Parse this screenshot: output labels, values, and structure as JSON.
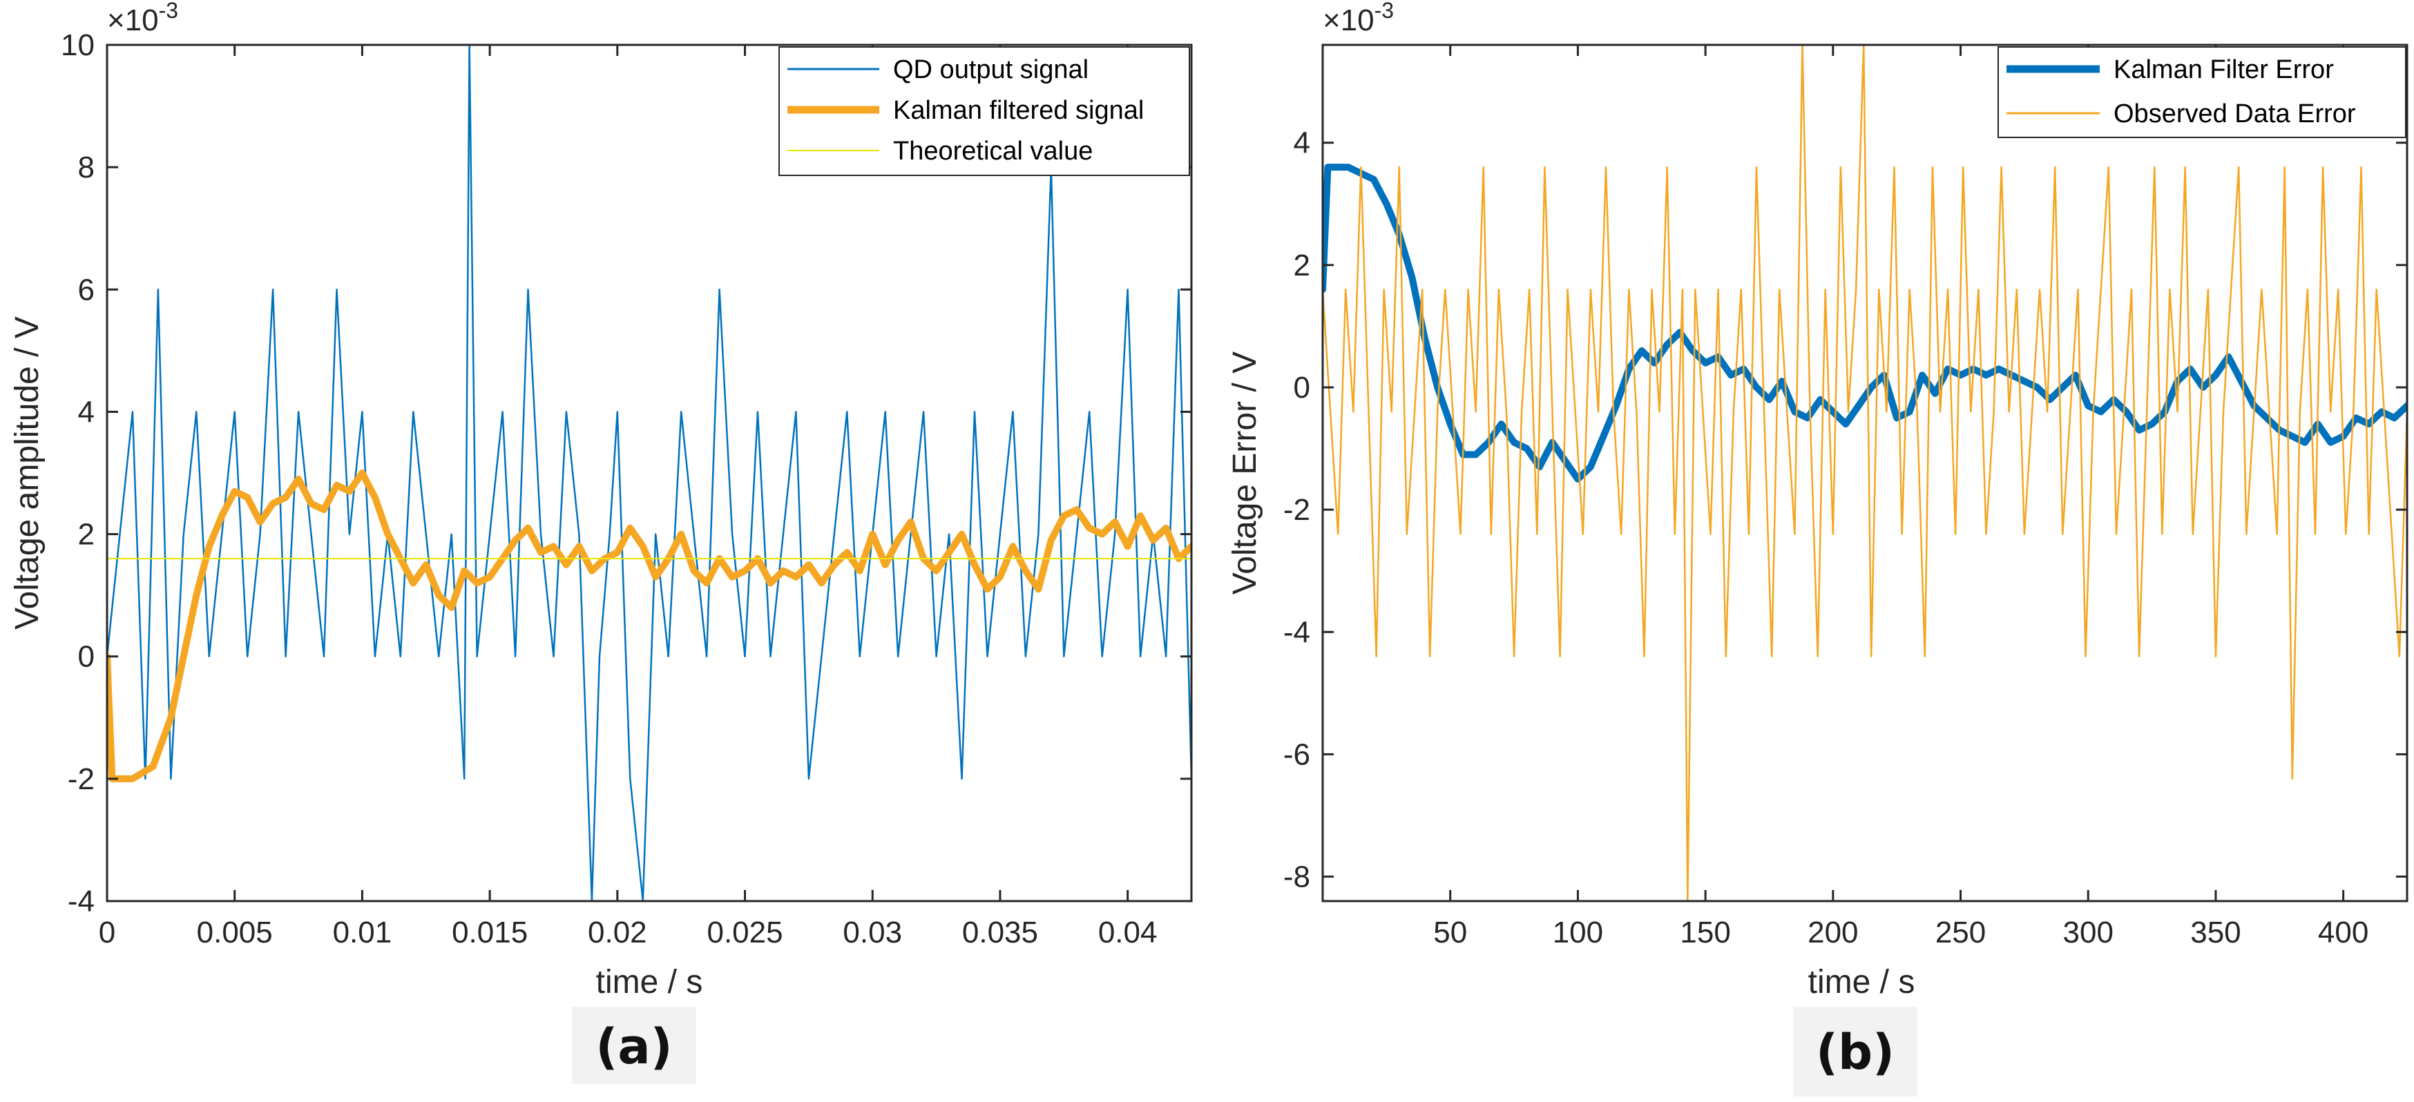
{
  "chart_data": [
    {
      "type": "line",
      "panel_label": "(a)",
      "xlabel": "time / s",
      "ylabel": "Voltage amplitude / V",
      "y_exponent_base": "×10",
      "y_exponent_power": "-3",
      "xlim": [
        0,
        0.0425
      ],
      "ylim": [
        -4,
        10
      ],
      "x_ticks": [
        0,
        0.005,
        0.01,
        0.015,
        0.02,
        0.025,
        0.03,
        0.035,
        0.04
      ],
      "x_tick_labels": [
        "0",
        "0.005",
        "0.01",
        "0.015",
        "0.02",
        "0.025",
        "0.03",
        "0.035",
        "0.04"
      ],
      "y_ticks": [
        -4,
        -2,
        0,
        2,
        4,
        6,
        8,
        10
      ],
      "y_tick_labels": [
        "-4",
        "-2",
        "0",
        "2",
        "4",
        "6",
        "8",
        "10"
      ],
      "grid": false,
      "legend_position": "top-right",
      "series": [
        {
          "name": "QD output signal",
          "color": "#0072BD",
          "style": "thin",
          "x": [
            0,
            0.0005,
            0.001,
            0.0015,
            0.002,
            0.0025,
            0.003,
            0.0035,
            0.004,
            0.0045,
            0.005,
            0.0055,
            0.006,
            0.0065,
            0.007,
            0.0075,
            0.008,
            0.0085,
            0.009,
            0.0095,
            0.01,
            0.0105,
            0.011,
            0.0115,
            0.012,
            0.0125,
            0.013,
            0.0135,
            0.014,
            0.0142,
            0.0145,
            0.015,
            0.0155,
            0.016,
            0.0165,
            0.017,
            0.0175,
            0.018,
            0.0185,
            0.019,
            0.0193,
            0.0197,
            0.02,
            0.0205,
            0.021,
            0.0215,
            0.022,
            0.0225,
            0.023,
            0.0235,
            0.024,
            0.0245,
            0.025,
            0.0255,
            0.026,
            0.0265,
            0.027,
            0.0275,
            0.028,
            0.0285,
            0.029,
            0.0295,
            0.03,
            0.0305,
            0.031,
            0.0315,
            0.032,
            0.0325,
            0.033,
            0.0335,
            0.034,
            0.0345,
            0.035,
            0.0355,
            0.036,
            0.0365,
            0.037,
            0.0375,
            0.038,
            0.0385,
            0.039,
            0.0395,
            0.04,
            0.0405,
            0.041,
            0.0415,
            0.042,
            0.0425
          ],
          "y": [
            0,
            2,
            4,
            -2,
            6,
            -2,
            2,
            4,
            0,
            2,
            4,
            0,
            2,
            6,
            0,
            4,
            2,
            0,
            6,
            2,
            4,
            0,
            2,
            0,
            4,
            2,
            0,
            2,
            -2,
            10,
            0,
            2,
            4,
            0,
            6,
            2,
            0,
            4,
            2,
            -4,
            0,
            2,
            4,
            -2,
            -4,
            2,
            0,
            4,
            2,
            0,
            6,
            2,
            0,
            4,
            0,
            2,
            4,
            -2,
            0,
            2,
            4,
            0,
            2,
            4,
            0,
            2,
            4,
            0,
            2,
            -2,
            4,
            0,
            2,
            4,
            0,
            2,
            8,
            0,
            2,
            4,
            0,
            2,
            6,
            0,
            2,
            0,
            6,
            -2
          ]
        },
        {
          "name": "Kalman filtered signal",
          "color": "#F5A623",
          "style": "thick",
          "x": [
            0,
            0.0002,
            0.001,
            0.0018,
            0.0025,
            0.003,
            0.0035,
            0.004,
            0.0045,
            0.005,
            0.0055,
            0.006,
            0.0065,
            0.007,
            0.0075,
            0.008,
            0.0085,
            0.009,
            0.0095,
            0.01,
            0.0105,
            0.011,
            0.0115,
            0.012,
            0.0125,
            0.013,
            0.0135,
            0.014,
            0.0145,
            0.015,
            0.0155,
            0.016,
            0.0165,
            0.017,
            0.0175,
            0.018,
            0.0185,
            0.019,
            0.0195,
            0.02,
            0.0205,
            0.021,
            0.0215,
            0.022,
            0.0225,
            0.023,
            0.0235,
            0.024,
            0.0245,
            0.025,
            0.0255,
            0.026,
            0.0265,
            0.027,
            0.0275,
            0.028,
            0.0285,
            0.029,
            0.0295,
            0.03,
            0.0305,
            0.031,
            0.0315,
            0.032,
            0.0325,
            0.033,
            0.0335,
            0.034,
            0.0345,
            0.035,
            0.0355,
            0.036,
            0.0365,
            0.037,
            0.0375,
            0.038,
            0.0385,
            0.039,
            0.0395,
            0.04,
            0.0405,
            0.041,
            0.0415,
            0.042,
            0.0425
          ],
          "y": [
            0,
            -2,
            -2,
            -1.8,
            -1,
            0,
            1,
            1.8,
            2.3,
            2.7,
            2.6,
            2.2,
            2.5,
            2.6,
            2.9,
            2.5,
            2.4,
            2.8,
            2.7,
            3,
            2.6,
            2,
            1.6,
            1.2,
            1.5,
            1,
            0.8,
            1.4,
            1.2,
            1.3,
            1.6,
            1.9,
            2.1,
            1.7,
            1.8,
            1.5,
            1.8,
            1.4,
            1.6,
            1.7,
            2.1,
            1.8,
            1.3,
            1.6,
            2,
            1.4,
            1.2,
            1.6,
            1.3,
            1.4,
            1.6,
            1.2,
            1.4,
            1.3,
            1.5,
            1.2,
            1.5,
            1.7,
            1.4,
            2,
            1.5,
            1.9,
            2.2,
            1.6,
            1.4,
            1.7,
            2,
            1.5,
            1.1,
            1.3,
            1.8,
            1.4,
            1.1,
            1.9,
            2.3,
            2.4,
            2.1,
            2,
            2.2,
            1.8,
            2.3,
            1.9,
            2.1,
            1.6,
            1.8
          ]
        },
        {
          "name": "Theoretical value",
          "color": "#E6E600",
          "style": "hairline",
          "x": [
            0,
            0.0425
          ],
          "y": [
            1.6,
            1.6
          ]
        }
      ]
    },
    {
      "type": "line",
      "panel_label": "(b)",
      "xlabel": "time / s",
      "ylabel": "Voltage Error / V",
      "y_exponent_base": "×10",
      "y_exponent_power": "-3",
      "xlim": [
        0,
        425
      ],
      "ylim": [
        -8.4,
        5.6
      ],
      "x_ticks": [
        50,
        100,
        150,
        200,
        250,
        300,
        350,
        400
      ],
      "x_tick_labels": [
        "50",
        "100",
        "150",
        "200",
        "250",
        "300",
        "350",
        "400"
      ],
      "y_ticks": [
        -8,
        -6,
        -4,
        -2,
        0,
        2,
        4
      ],
      "y_tick_labels": [
        "-8",
        "-6",
        "-4",
        "-2",
        "0",
        "2",
        "4"
      ],
      "grid": false,
      "legend_position": "top-right",
      "series": [
        {
          "name": "Kalman Filter Error",
          "color": "#0072BD",
          "style": "thick",
          "x": [
            0,
            2,
            5,
            10,
            15,
            20,
            25,
            30,
            35,
            40,
            45,
            50,
            55,
            60,
            65,
            70,
            75,
            80,
            85,
            90,
            95,
            100,
            105,
            110,
            115,
            120,
            125,
            130,
            135,
            140,
            145,
            150,
            155,
            160,
            165,
            170,
            175,
            180,
            185,
            190,
            195,
            200,
            205,
            210,
            215,
            220,
            225,
            230,
            235,
            240,
            245,
            250,
            255,
            260,
            265,
            270,
            275,
            280,
            285,
            290,
            295,
            300,
            305,
            310,
            315,
            320,
            325,
            330,
            335,
            340,
            345,
            350,
            355,
            360,
            365,
            370,
            375,
            380,
            385,
            390,
            395,
            400,
            405,
            410,
            415,
            420,
            425
          ],
          "y": [
            1.6,
            3.6,
            3.6,
            3.6,
            3.5,
            3.4,
            3,
            2.5,
            1.8,
            0.8,
            0,
            -0.6,
            -1.1,
            -1.1,
            -0.9,
            -0.6,
            -0.9,
            -1,
            -1.3,
            -0.9,
            -1.2,
            -1.5,
            -1.3,
            -0.8,
            -0.3,
            0.3,
            0.6,
            0.4,
            0.7,
            0.9,
            0.6,
            0.4,
            0.5,
            0.2,
            0.3,
            0,
            -0.2,
            0.1,
            -0.4,
            -0.5,
            -0.2,
            -0.4,
            -0.6,
            -0.3,
            0,
            0.2,
            -0.5,
            -0.4,
            0.2,
            -0.1,
            0.3,
            0.2,
            0.3,
            0.2,
            0.3,
            0.2,
            0.1,
            0,
            -0.2,
            0,
            0.2,
            -0.3,
            -0.4,
            -0.2,
            -0.4,
            -0.7,
            -0.6,
            -0.4,
            0.1,
            0.3,
            0,
            0.2,
            0.5,
            0.1,
            -0.3,
            -0.5,
            -0.7,
            -0.8,
            -0.9,
            -0.6,
            -0.9,
            -0.8,
            -0.5,
            -0.6,
            -0.4,
            -0.5,
            -0.3
          ]
        },
        {
          "name": "Observed Data Error",
          "color": "#F5A623",
          "style": "thin",
          "x": [
            0,
            3,
            6,
            9,
            12,
            15,
            18,
            21,
            24,
            27,
            30,
            33,
            36,
            39,
            42,
            45,
            48,
            51,
            54,
            57,
            60,
            63,
            66,
            69,
            72,
            75,
            78,
            81,
            84,
            87,
            90,
            93,
            96,
            99,
            102,
            105,
            108,
            111,
            114,
            117,
            120,
            123,
            126,
            129,
            132,
            135,
            138,
            141,
            143,
            146,
            149,
            152,
            155,
            158,
            161,
            164,
            167,
            170,
            173,
            176,
            179,
            182,
            185,
            188,
            191,
            194,
            197,
            200,
            203,
            206,
            209,
            212,
            215,
            218,
            221,
            224,
            227,
            230,
            233,
            236,
            239,
            242,
            245,
            248,
            251,
            254,
            257,
            260,
            263,
            266,
            269,
            272,
            275,
            278,
            281,
            284,
            287,
            290,
            293,
            296,
            299,
            302,
            305,
            308,
            311,
            314,
            317,
            320,
            323,
            326,
            329,
            332,
            335,
            338,
            341,
            344,
            347,
            350,
            353,
            356,
            359,
            362,
            365,
            368,
            371,
            374,
            377,
            380,
            383,
            386,
            389,
            392,
            395,
            398,
            401,
            404,
            407,
            410,
            413,
            416,
            419,
            422,
            425
          ],
          "y": [
            1.6,
            -0.4,
            -2.4,
            1.6,
            -0.4,
            3.6,
            -0.4,
            -4.4,
            1.6,
            -0.4,
            3.6,
            -2.4,
            -0.4,
            1.6,
            -4.4,
            -0.4,
            1.6,
            -0.4,
            -2.4,
            1.6,
            -0.4,
            3.6,
            -2.4,
            1.6,
            -0.4,
            -4.4,
            -0.4,
            1.6,
            -2.4,
            3.6,
            -0.4,
            -4.4,
            1.6,
            -0.4,
            -2.4,
            1.6,
            -0.4,
            3.6,
            -0.4,
            -2.4,
            1.6,
            -0.4,
            -4.4,
            1.6,
            -0.4,
            3.6,
            -2.4,
            1.6,
            -8.4,
            1.6,
            -0.4,
            -2.4,
            1.6,
            -4.4,
            -0.4,
            1.6,
            -2.4,
            3.6,
            -0.4,
            -4.4,
            1.6,
            -0.4,
            -2.4,
            5.6,
            -0.4,
            -4.4,
            1.6,
            -2.4,
            3.6,
            -0.4,
            1.6,
            5.6,
            -4.4,
            1.6,
            -0.4,
            3.6,
            -2.4,
            1.6,
            -0.4,
            -4.4,
            3.6,
            -0.4,
            1.6,
            -2.4,
            3.6,
            -0.4,
            1.6,
            -2.4,
            -0.4,
            3.6,
            -0.4,
            1.6,
            -2.4,
            -0.4,
            1.6,
            -0.4,
            3.6,
            -2.4,
            -0.4,
            1.6,
            -4.4,
            -0.4,
            1.6,
            3.6,
            -2.4,
            -0.4,
            1.6,
            -4.4,
            -0.4,
            3.6,
            -2.4,
            1.6,
            -0.4,
            3.6,
            -2.4,
            -0.4,
            1.6,
            -4.4,
            -0.4,
            1.6,
            3.6,
            -2.4,
            -0.4,
            1.6,
            -0.4,
            -2.4,
            3.6,
            -6.4,
            -0.4,
            1.6,
            -2.4,
            3.6,
            -0.4,
            1.6,
            -2.4,
            -0.4,
            3.6,
            -2.4,
            1.6,
            -0.4,
            -2.4,
            -4.4,
            -0.4
          ]
        }
      ]
    }
  ]
}
